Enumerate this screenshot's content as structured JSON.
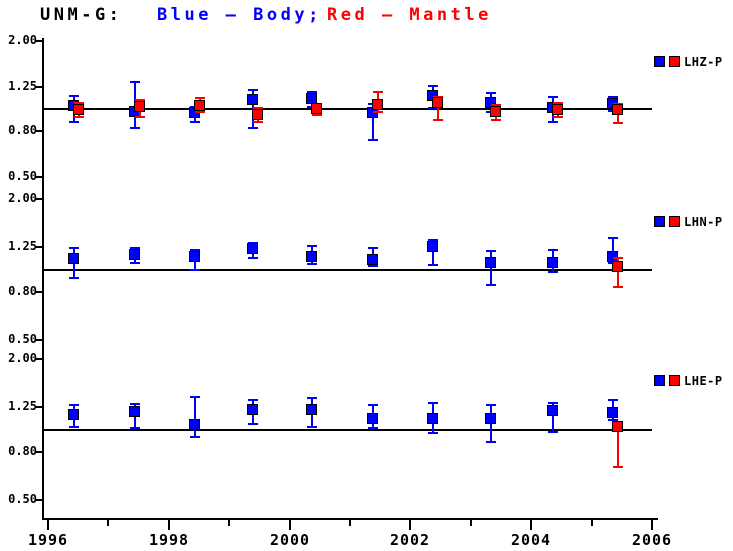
{
  "chart_data": {
    "type": "scatter",
    "title_station": "UNM-G:",
    "title_body": "Blue — Body;",
    "title_mantle": "Red — Mantle",
    "series_colors": {
      "body": "#0000ff",
      "mantle": "#ff0000"
    },
    "x_axis": {
      "min": 1996,
      "max": 2006,
      "major_ticks": [
        {
          "year": 1996,
          "label": "1996"
        },
        {
          "year": 1998,
          "label": "1998"
        },
        {
          "year": 2000,
          "label": "2000"
        },
        {
          "year": 2002,
          "label": "2002"
        },
        {
          "year": 2004,
          "label": "2004"
        },
        {
          "year": 2006,
          "label": "2006"
        }
      ],
      "minor_tick_years": [
        1997,
        1999,
        2001,
        2003,
        2005
      ]
    },
    "y_axis": {
      "scale": "log",
      "range": [
        0.5,
        2.0
      ],
      "reference_value": 1.0,
      "ticks": [
        {
          "value": 2.0,
          "label": "2.00"
        },
        {
          "value": 1.25,
          "label": "1.25"
        },
        {
          "value": 0.8,
          "label": "0.80"
        },
        {
          "value": 0.5,
          "label": "0.50"
        }
      ]
    },
    "panels": [
      {
        "name": "LHZ-P",
        "points": [
          {
            "year": 1996.47,
            "body": {
              "v": 1.03,
              "lo": 0.88,
              "hi": 1.14
            },
            "mantle": {
              "v": 0.99,
              "lo": 0.92,
              "hi": 1.06
            }
          },
          {
            "year": 1997.47,
            "body": {
              "v": 0.97,
              "lo": 0.82,
              "hi": 1.32
            },
            "mantle": {
              "v": 1.02,
              "lo": 0.92,
              "hi": 1.1
            }
          },
          {
            "year": 1998.46,
            "body": {
              "v": 0.96,
              "lo": 0.88,
              "hi": 1.02
            },
            "mantle": {
              "v": 1.03,
              "lo": 0.97,
              "hi": 1.12
            }
          },
          {
            "year": 1999.43,
            "body": {
              "v": 1.1,
              "lo": 0.82,
              "hi": 1.21
            },
            "mantle": {
              "v": 0.94,
              "lo": 0.88,
              "hi": 1.01
            }
          },
          {
            "year": 2000.41,
            "body": {
              "v": 1.11,
              "lo": 1.02,
              "hi": 1.19
            },
            "mantle": {
              "v": 1.0,
              "lo": 0.94,
              "hi": 1.05
            }
          },
          {
            "year": 2001.42,
            "body": {
              "v": 0.96,
              "lo": 0.73,
              "hi": 1.05
            },
            "mantle": {
              "v": 1.04,
              "lo": 0.97,
              "hi": 1.19
            }
          },
          {
            "year": 2002.41,
            "body": {
              "v": 1.14,
              "lo": 1.01,
              "hi": 1.26
            },
            "mantle": {
              "v": 1.06,
              "lo": 0.89,
              "hi": 1.13
            }
          },
          {
            "year": 2003.37,
            "body": {
              "v": 1.06,
              "lo": 0.97,
              "hi": 1.18
            },
            "mantle": {
              "v": 0.97,
              "lo": 0.89,
              "hi": 1.04
            }
          },
          {
            "year": 2004.4,
            "body": {
              "v": 1.01,
              "lo": 0.88,
              "hi": 1.13
            },
            "mantle": {
              "v": 0.99,
              "lo": 0.92,
              "hi": 1.06
            }
          },
          {
            "year": 2005.39,
            "body": {
              "v": 1.05,
              "lo": 0.98,
              "hi": 1.13
            },
            "mantle": {
              "v": 0.99,
              "lo": 0.87,
              "hi": 1.05
            }
          }
        ]
      },
      {
        "name": "LHN-P",
        "points": [
          {
            "year": 1996.47,
            "body": {
              "v": 1.11,
              "lo": 0.92,
              "hi": 1.24
            },
            "mantle": null
          },
          {
            "year": 1997.47,
            "body": {
              "v": 1.15,
              "lo": 1.07,
              "hi": 1.24
            },
            "mantle": null
          },
          {
            "year": 1998.46,
            "body": {
              "v": 1.13,
              "lo": 1.0,
              "hi": 1.21
            },
            "mantle": null
          },
          {
            "year": 1999.43,
            "body": {
              "v": 1.22,
              "lo": 1.12,
              "hi": 1.3
            },
            "mantle": null
          },
          {
            "year": 2000.41,
            "body": {
              "v": 1.13,
              "lo": 1.06,
              "hi": 1.26
            },
            "mantle": null
          },
          {
            "year": 2001.42,
            "body": {
              "v": 1.1,
              "lo": 1.04,
              "hi": 1.24
            },
            "mantle": null
          },
          {
            "year": 2002.41,
            "body": {
              "v": 1.25,
              "lo": 1.05,
              "hi": 1.34
            },
            "mantle": null
          },
          {
            "year": 2003.37,
            "body": {
              "v": 1.07,
              "lo": 0.86,
              "hi": 1.2
            },
            "mantle": null
          },
          {
            "year": 2004.4,
            "body": {
              "v": 1.07,
              "lo": 0.98,
              "hi": 1.21
            },
            "mantle": null
          },
          {
            "year": 2005.39,
            "body": {
              "v": 1.13,
              "lo": 1.07,
              "hi": 1.36
            },
            "mantle": {
              "v": 1.02,
              "lo": 0.84,
              "hi": 1.12
            }
          }
        ]
      },
      {
        "name": "LHE-P",
        "points": [
          {
            "year": 1996.47,
            "body": {
              "v": 1.15,
              "lo": 1.02,
              "hi": 1.27
            },
            "mantle": null
          },
          {
            "year": 1997.47,
            "body": {
              "v": 1.19,
              "lo": 1.01,
              "hi": 1.29
            },
            "mantle": null
          },
          {
            "year": 1998.46,
            "body": {
              "v": 1.05,
              "lo": 0.93,
              "hi": 1.38
            },
            "mantle": null
          },
          {
            "year": 1999.43,
            "body": {
              "v": 1.21,
              "lo": 1.06,
              "hi": 1.34
            },
            "mantle": null
          },
          {
            "year": 2000.41,
            "body": {
              "v": 1.21,
              "lo": 1.02,
              "hi": 1.36
            },
            "mantle": null
          },
          {
            "year": 2001.42,
            "body": {
              "v": 1.11,
              "lo": 1.01,
              "hi": 1.27
            },
            "mantle": null
          },
          {
            "year": 2002.41,
            "body": {
              "v": 1.11,
              "lo": 0.97,
              "hi": 1.3
            },
            "mantle": null
          },
          {
            "year": 2003.37,
            "body": {
              "v": 1.11,
              "lo": 0.88,
              "hi": 1.27
            },
            "mantle": null
          },
          {
            "year": 2004.4,
            "body": {
              "v": 1.2,
              "lo": 0.98,
              "hi": 1.3
            },
            "mantle": null
          },
          {
            "year": 2005.39,
            "body": {
              "v": 1.18,
              "lo": 1.1,
              "hi": 1.34
            },
            "mantle": {
              "v": 1.02,
              "lo": 0.69,
              "hi": 1.08
            }
          }
        ]
      }
    ]
  }
}
